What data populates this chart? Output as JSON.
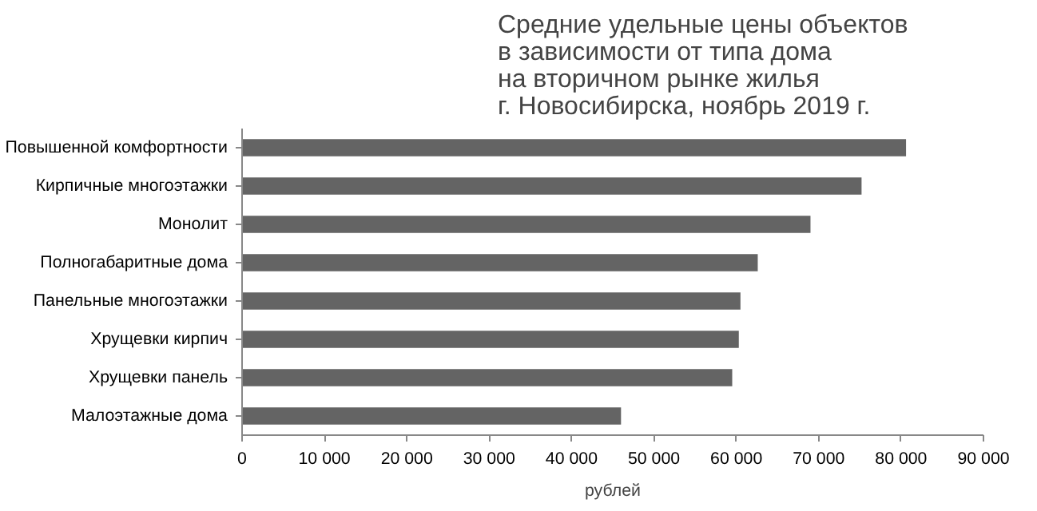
{
  "chart_data": {
    "type": "bar",
    "orientation": "horizontal",
    "title": "Средние удельные  цены объектов\nв зависимости от типа дома\nна вторичном рынке жилья\nг. Новосибирска, ноябрь 2019 г.",
    "xlabel": "рублей",
    "categories": [
      "Повышенной комфортности",
      "Кирпичные многоэтажки",
      "Монолит",
      "Полногабаритные дома",
      "Панельные многоэтажки",
      "Хрущевки кирпич",
      "Хрущевки панель",
      "Малоэтажные дома"
    ],
    "values": [
      80600,
      75200,
      69000,
      62600,
      60500,
      60300,
      59500,
      46000
    ],
    "color": "#646464",
    "xlim": [
      0,
      90000
    ],
    "xticks": [
      {
        "value": 0,
        "label": "0"
      },
      {
        "value": 10000,
        "label": "10 000"
      },
      {
        "value": 20000,
        "label": "20 000"
      },
      {
        "value": 30000,
        "label": "30 000"
      },
      {
        "value": 40000,
        "label": "40 000"
      },
      {
        "value": 50000,
        "label": "50 000"
      },
      {
        "value": 60000,
        "label": "60 000"
      },
      {
        "value": 70000,
        "label": "70 000"
      },
      {
        "value": 80000,
        "label": "80 000"
      },
      {
        "value": 90000,
        "label": "90 000"
      }
    ],
    "grid": false
  }
}
